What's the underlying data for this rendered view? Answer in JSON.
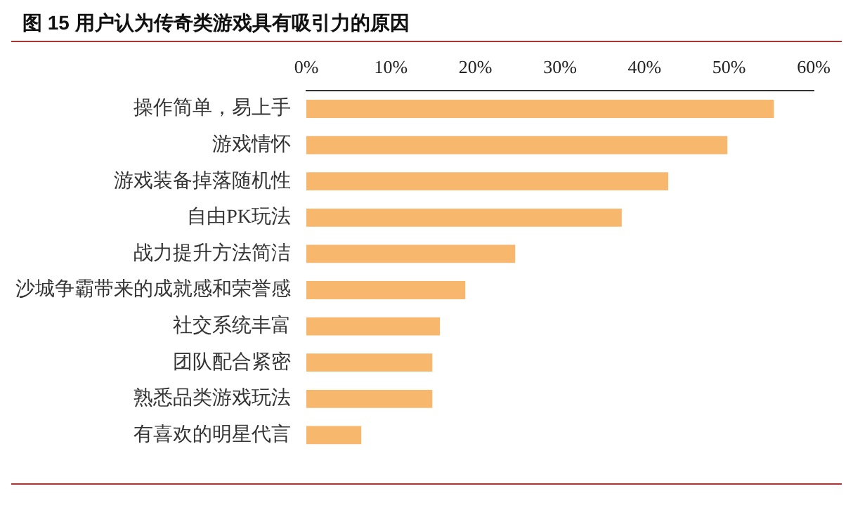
{
  "chart_data": {
    "type": "bar",
    "orientation": "horizontal",
    "title": "图 15 用户认为传奇类游戏具有吸引力的原因",
    "categories": [
      "操作简单，易上手",
      "游戏情怀",
      "游戏装备掉落随机性",
      "自由PK玩法",
      "战力提升方法简洁",
      "沙城争霸带来的成就感和荣誉感",
      "社交系统丰富",
      "团队配合紧密",
      "熟悉品类游戏玩法",
      "有喜欢的明星代言"
    ],
    "values": [
      55.3,
      49.8,
      42.8,
      37.3,
      24.7,
      18.8,
      15.8,
      14.9,
      14.9,
      6.5
    ],
    "color": "#f7b86e",
    "xlim": [
      0,
      60
    ],
    "xticks": [
      {
        "value": 0,
        "label": "0%"
      },
      {
        "value": 10,
        "label": "10%"
      },
      {
        "value": 20,
        "label": "20%"
      },
      {
        "value": 30,
        "label": "30%"
      },
      {
        "value": 40,
        "label": "40%"
      },
      {
        "value": 50,
        "label": "50%"
      },
      {
        "value": 60,
        "label": "60%"
      }
    ],
    "grid": false,
    "legend": false
  }
}
